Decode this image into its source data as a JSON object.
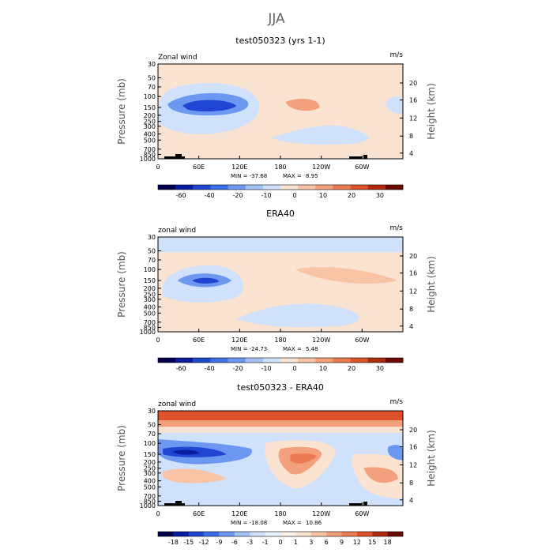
{
  "figure": {
    "title": "JJA"
  },
  "chart_data": [
    {
      "type": "heatmap",
      "title": "test050323 (yrs 1-1)",
      "left_label": "Zonal wind",
      "right_label": "m/s",
      "ylabel": "Pressure (mb)",
      "ylabel_right": "Height (km)",
      "y_ticks": [
        "30",
        "50",
        "70",
        "100",
        "150",
        "200",
        "250",
        "300",
        "400",
        "500",
        "700",
        "850",
        "1000"
      ],
      "y_right_ticks": [
        "20",
        "16",
        "12",
        "8",
        "4"
      ],
      "x_ticks": [
        "0",
        "60E",
        "120E",
        "180",
        "120W",
        "60W"
      ],
      "stats": {
        "min_label": "MIN = -37.68",
        "max_label": "MAX =",
        "max_value": "8.95"
      },
      "colorbar_labels": [
        "-60",
        "-40",
        "-20",
        "-10",
        "0",
        "10",
        "20",
        "30"
      ],
      "colorbar_colors": [
        "#00004f",
        "#081ca0",
        "#1e46d2",
        "#3b6fe8",
        "#6d98f2",
        "#a3c3f8",
        "#cfe1fb",
        "#fbe3d2",
        "#f9c4a6",
        "#f3a07c",
        "#ec7a52",
        "#dd5228",
        "#b02a10",
        "#6a0a00"
      ]
    },
    {
      "type": "heatmap",
      "title": "ERA40",
      "left_label": "zonal wind",
      "right_label": "m/s",
      "ylabel": "Pressure (mb)",
      "ylabel_right": "Height (km)",
      "y_ticks": [
        "30",
        "50",
        "70",
        "100",
        "150",
        "200",
        "250",
        "300",
        "400",
        "500",
        "700",
        "850",
        "1000"
      ],
      "y_right_ticks": [
        "20",
        "16",
        "12",
        "8",
        "4"
      ],
      "x_ticks": [
        "0",
        "60E",
        "120E",
        "180",
        "120W",
        "60W"
      ],
      "stats": {
        "min_label": "MIN = -24.73",
        "max_label": "MAX =",
        "max_value": "5.48"
      },
      "colorbar_labels": [
        "-60",
        "-40",
        "-20",
        "-10",
        "0",
        "10",
        "20",
        "30"
      ],
      "colorbar_colors": [
        "#00004f",
        "#081ca0",
        "#1e46d2",
        "#3b6fe8",
        "#6d98f2",
        "#a3c3f8",
        "#cfe1fb",
        "#fbe3d2",
        "#f9c4a6",
        "#f3a07c",
        "#ec7a52",
        "#dd5228",
        "#b02a10",
        "#6a0a00"
      ]
    },
    {
      "type": "heatmap",
      "title": "test050323 - ERA40",
      "left_label": "zonal wind",
      "right_label": "m/s",
      "ylabel": "Pressure (mb)",
      "ylabel_right": "Height (km)",
      "y_ticks": [
        "30",
        "50",
        "70",
        "100",
        "150",
        "200",
        "250",
        "300",
        "400",
        "500",
        "700",
        "850",
        "1000"
      ],
      "y_right_ticks": [
        "20",
        "16",
        "12",
        "8",
        "4"
      ],
      "x_ticks": [
        "0",
        "60E",
        "120E",
        "180",
        "120W",
        "60W"
      ],
      "stats": {
        "min_label": "MIN = -18.08",
        "max_label": "MAX =",
        "max_value": "10.86"
      },
      "colorbar_labels": [
        "-18",
        "-15",
        "-12",
        "-9",
        "-6",
        "-3",
        "-1",
        "0",
        "1",
        "3",
        "6",
        "9",
        "12",
        "15",
        "18"
      ],
      "colorbar_colors": [
        "#00004f",
        "#081ca0",
        "#1e46d2",
        "#3b6fe8",
        "#6d98f2",
        "#a3c3f8",
        "#cfe1fb",
        "#e8f0fd",
        "#fdf0e6",
        "#fbe3d2",
        "#f9c4a6",
        "#f3a07c",
        "#ec7a52",
        "#dd5228",
        "#b02a10",
        "#6a0a00"
      ]
    }
  ]
}
